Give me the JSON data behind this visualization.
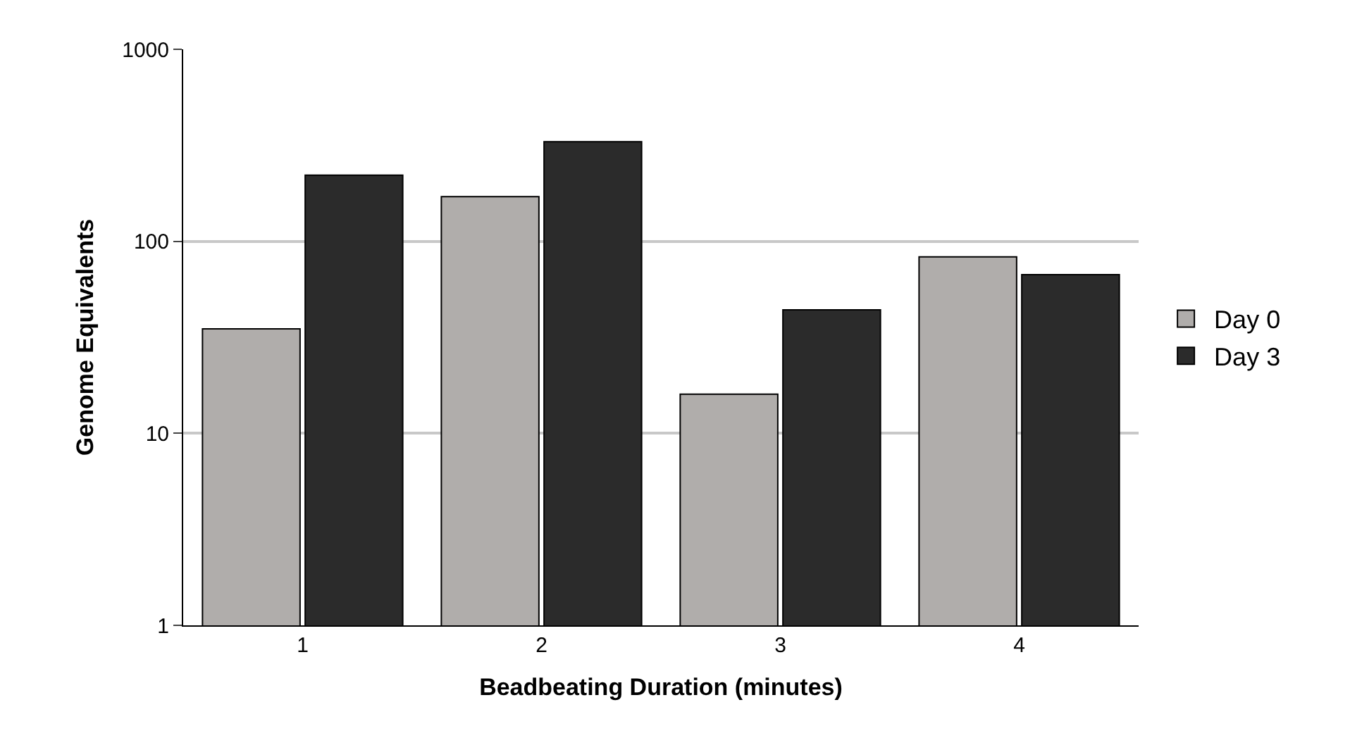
{
  "chart_data": {
    "type": "bar",
    "xlabel": "Beadbeating Duration (minutes)",
    "ylabel": "Genome Equivalents",
    "categories": [
      "1",
      "2",
      "3",
      "4"
    ],
    "series": [
      {
        "name": "Day 0",
        "color": "#b0adab",
        "values": [
          35,
          171,
          16,
          83
        ]
      },
      {
        "name": "Day 3",
        "color": "#2b2b2b",
        "values": [
          221,
          330,
          44,
          67
        ]
      }
    ],
    "log": "y",
    "ylim": [
      1,
      1000
    ],
    "yticks": [
      1,
      10,
      100,
      1000
    ],
    "grid": "y",
    "legend": "right"
  }
}
